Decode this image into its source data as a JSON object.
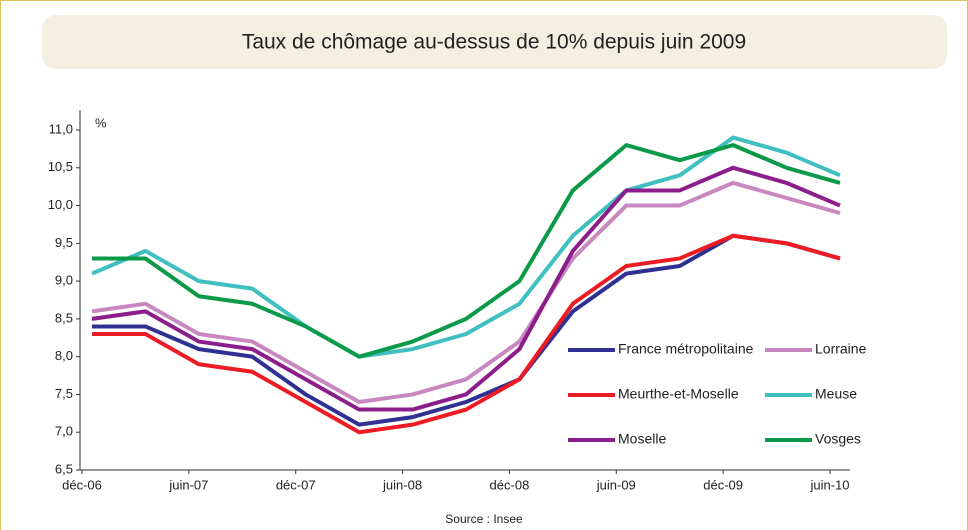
{
  "chart_data": {
    "type": "line",
    "title": "Taux de chômage au-dessus de 10% depuis juin 2009",
    "y_label": "%",
    "source": "Source : Insee",
    "categories": [
      "déc-06",
      null,
      "juin-07",
      null,
      "déc-07",
      null,
      "juin-08",
      null,
      "déc-08",
      null,
      "juin-09",
      null,
      "déc-09",
      null,
      "juin-10"
    ],
    "series": [
      {
        "name": "France métropolitaine",
        "color": "#2e3192",
        "values": [
          8.4,
          8.4,
          8.1,
          8.0,
          7.5,
          7.1,
          7.2,
          7.4,
          7.7,
          8.6,
          9.1,
          9.2,
          9.6,
          9.5,
          9.3
        ]
      },
      {
        "name": "Lorraine",
        "color": "#c987c0",
        "values": [
          8.6,
          8.7,
          8.3,
          8.2,
          7.8,
          7.4,
          7.5,
          7.7,
          8.2,
          9.3,
          10.0,
          10.0,
          10.3,
          10.1,
          9.9
        ]
      },
      {
        "name": "Meurthe-et-Moselle",
        "color": "#ed1c24",
        "values": [
          8.3,
          8.3,
          7.9,
          7.8,
          7.4,
          7.0,
          7.1,
          7.3,
          7.7,
          8.7,
          9.2,
          9.3,
          9.6,
          9.5,
          9.3
        ]
      },
      {
        "name": "Meuse",
        "color": "#3fbfbf",
        "values": [
          9.1,
          9.4,
          9.0,
          8.9,
          8.4,
          8.0,
          8.1,
          8.3,
          8.7,
          9.6,
          10.2,
          10.4,
          10.9,
          10.7,
          10.4
        ]
      },
      {
        "name": "Moselle",
        "color": "#8b1e8b",
        "values": [
          8.5,
          8.6,
          8.2,
          8.1,
          7.7,
          7.3,
          7.3,
          7.5,
          8.1,
          9.4,
          10.2,
          10.2,
          10.5,
          10.3,
          10.0
        ]
      },
      {
        "name": "Vosges",
        "color": "#0a9a48",
        "values": [
          9.3,
          9.3,
          8.8,
          8.7,
          8.4,
          8.0,
          8.2,
          8.5,
          9.0,
          10.2,
          10.8,
          10.6,
          10.8,
          10.5,
          10.3
        ]
      }
    ],
    "ylim": [
      6.5,
      11.0
    ],
    "yticks": [
      {
        "value": 6.5,
        "label": "6,5"
      },
      {
        "value": 7.0,
        "label": "7,0"
      },
      {
        "value": 7.5,
        "label": "7,5"
      },
      {
        "value": 8.0,
        "label": "8,0"
      },
      {
        "value": 8.5,
        "label": "8,5"
      },
      {
        "value": 9.0,
        "label": "9,0"
      },
      {
        "value": 9.5,
        "label": "9,5"
      },
      {
        "value": 10.0,
        "label": "10,0"
      },
      {
        "value": 10.5,
        "label": "10,5"
      },
      {
        "value": 11.0,
        "label": "11,0"
      }
    ]
  }
}
